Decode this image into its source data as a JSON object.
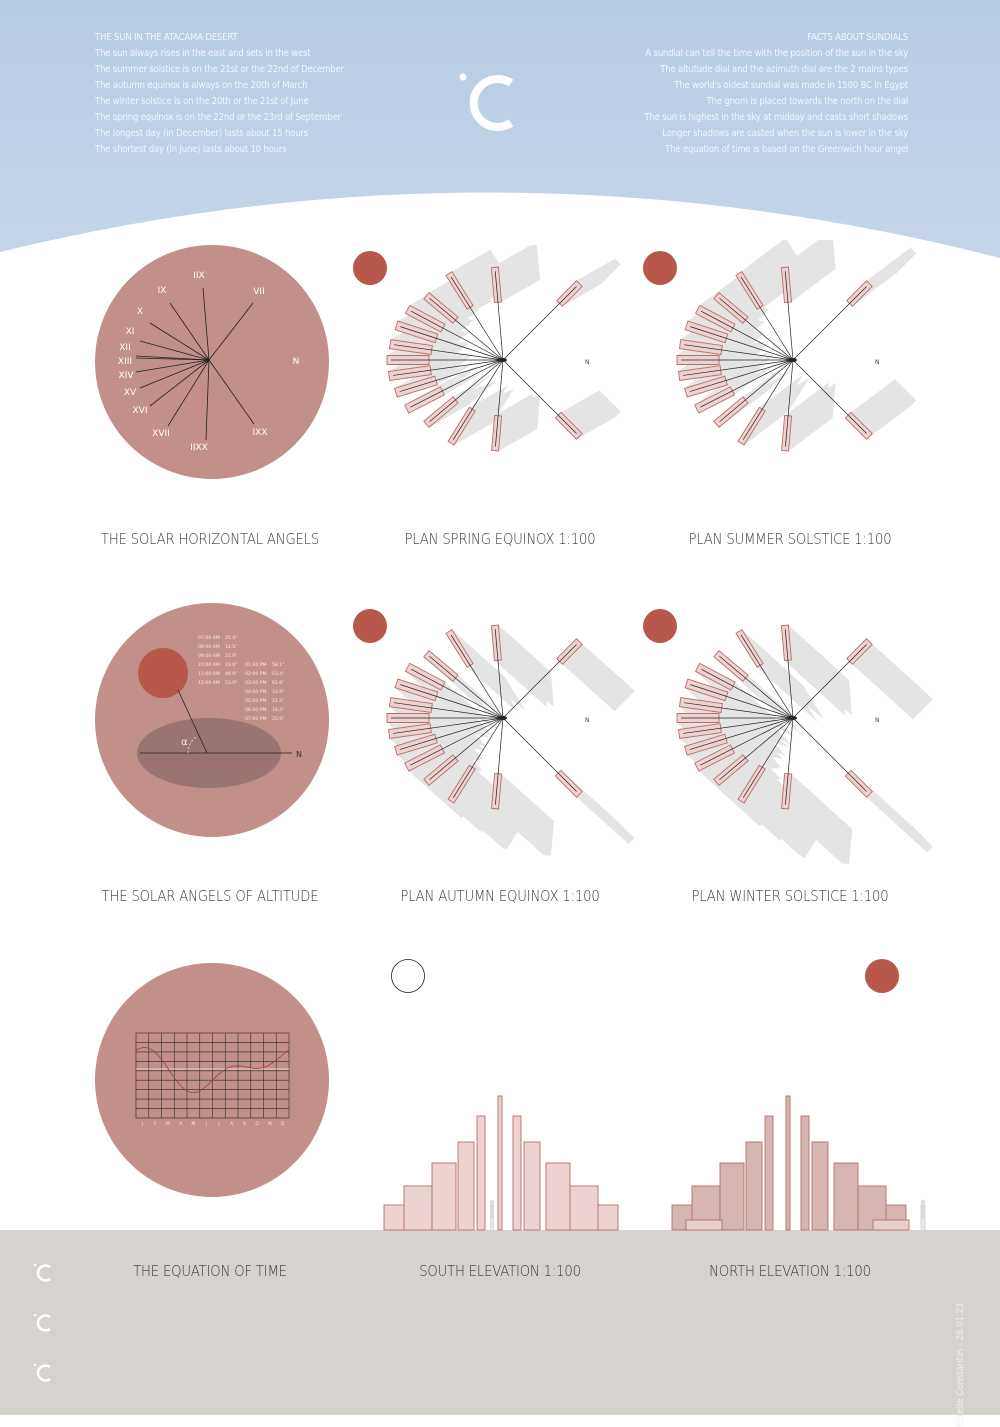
{
  "header": {
    "left_title": "THE SUN IN THE ATACAMA DESERT",
    "left_lines": [
      "The sun always rises in the east and sets in the west",
      "The summer solstice is on the 21st or the 22nd of December",
      "The autumn equinox is always on the 20th of March",
      "The winter solstice is on the 20th or the 21st of June",
      "The spring equinox is on the 22nd or the 23rd of September",
      "The longest day (in December) lasts about 15 hours",
      "The shortest day (in June) lasts about 10 hours"
    ],
    "right_title": "FACTS ABOUT SUNDIALS",
    "right_lines": [
      "A sundial can tell the time with the position of the sun in the sky",
      "The altutude dial and the azimuth dial are the 2 mains types",
      "The world's oldest sundial was made in 1500 BC in Egypt",
      "The gnom is placed towards the north on the dial",
      "The sun is highest in the sky at midday and casts short shadows",
      "Longer shadows are casted when the sun is lower in the sky",
      "The equation of time is based on the Greenwich hour angel"
    ],
    "logo": "°C"
  },
  "horizontal_dial": {
    "numerals": [
      "IIX",
      "VII",
      "IX",
      "X",
      "XI",
      "XII",
      "XIII",
      "XIV",
      "XV",
      "XVI",
      "XVII",
      "IIXX",
      "IXX"
    ],
    "north": "N"
  },
  "altitude_dial": {
    "alpha": "α",
    "north": "N",
    "table_left": [
      {
        "time": "07:00 AM",
        "angle": "25.4°"
      },
      {
        "time": "08:00 AM",
        "angle": "14.5°"
      },
      {
        "time": "09:00 AM",
        "angle": "21.9°"
      },
      {
        "time": "10:00 AM",
        "angle": "29.6°"
      },
      {
        "time": "11:00 AM",
        "angle": "46.9°"
      },
      {
        "time": "12:00 AM",
        "angle": "53.9°"
      }
    ],
    "table_right": [
      {
        "time": "01:00 PM",
        "angle": "58.1°"
      },
      {
        "time": "02:00 PM",
        "angle": "53.4°"
      },
      {
        "time": "03:00 PM",
        "angle": "61.6°"
      },
      {
        "time": "04:00 PM",
        "angle": "33.9°"
      },
      {
        "time": "05:00 PM",
        "angle": "21.5°"
      },
      {
        "time": "06:00 PM",
        "angle": "16.4°"
      },
      {
        "time": "07:00 PM",
        "angle": "25.9°"
      }
    ]
  },
  "equation_chart": {
    "months": [
      "J",
      "F",
      "M",
      "A",
      "M",
      "J",
      "J",
      "A",
      "S",
      "O",
      "N",
      "D"
    ]
  },
  "plans": {
    "north": "N"
  },
  "captions": {
    "c1": "THE SOLAR HORIZONTAL ANGELS",
    "c2": "PLAN SPRING EQUINOX 1:100",
    "c3": "PLAN SUMMER SOLSTICE 1:100",
    "c4": "THE SOLAR ANGELS OF ALTITUDE",
    "c5": "PLAN AUTUMN EQUINOX 1:100",
    "c6": "PLAN WINTER SOLSTICE 1:100",
    "c7": "THE EQUATION OF TIME",
    "c8": "SOUTH ELEVATION 1:100",
    "c9": "NORTH ELEVATION 1:100"
  },
  "footer": {
    "credit": "Estelle Constantin  -  26.01.21",
    "logo": "°C"
  },
  "colors": {
    "sky": "#b9cde3",
    "stone": "#c28f8a",
    "sun": "#b6584a",
    "pink_fill": "#ecd3d1",
    "pink_stroke": "#b86e67",
    "shadow": "#e5e5e5",
    "ground": "#d6d2ce"
  }
}
